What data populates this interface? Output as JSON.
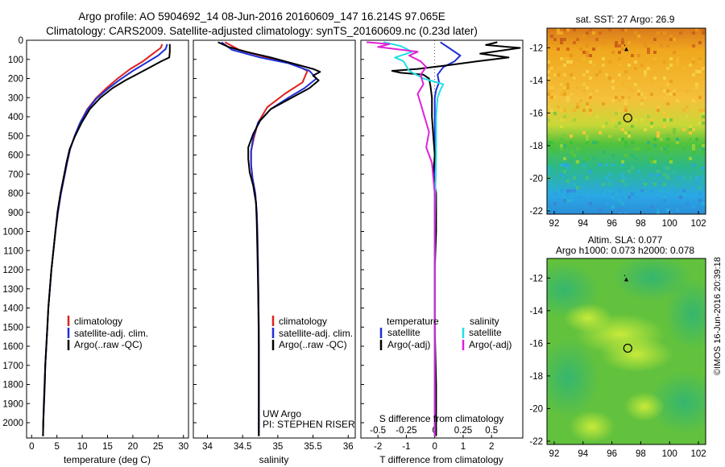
{
  "header": {
    "line1": "Argo profile: AO 5904692_14 08-Jun-2016 20160609_147 16.214S 97.065E",
    "line2": "Climatology: CARS2009. Satellite-adjusted climatology: synTS_20160609.nc (0.23d later)"
  },
  "colors": {
    "clim": "#e0201b",
    "sat": "#1f2fd8",
    "argo": "#000000",
    "sal_sat": "#1fe0e6",
    "sal_argo": "#e020d8"
  },
  "chart_data": [
    {
      "type": "line",
      "name": "temperature",
      "xlabel": "temperature (deg C)",
      "xlim": [
        -1,
        31
      ],
      "ylim": [
        0,
        2080
      ],
      "xticks": [
        0,
        5,
        10,
        15,
        20,
        25,
        30
      ],
      "yticks": [
        0,
        100,
        200,
        300,
        400,
        500,
        600,
        700,
        800,
        900,
        1000,
        1100,
        1200,
        1300,
        1400,
        1500,
        1600,
        1700,
        1800,
        1900,
        2000
      ],
      "legend": [
        "climatology",
        "satellite-adj. clim.",
        "Argo(..raw -QC)"
      ],
      "series": [
        {
          "name": "climatology",
          "points": [
            [
              25.8,
              20
            ],
            [
              25.5,
              40
            ],
            [
              24,
              70
            ],
            [
              22,
              110
            ],
            [
              19.5,
              150
            ],
            [
              17,
              200
            ],
            [
              14.8,
              250
            ],
            [
              12.8,
              300
            ],
            [
              11,
              360
            ],
            [
              9.6,
              430
            ],
            [
              8.5,
              500
            ],
            [
              7.6,
              570
            ],
            [
              7,
              640
            ],
            [
              6.4,
              720
            ],
            [
              5.8,
              800
            ],
            [
              5.2,
              900
            ],
            [
              4.7,
              1000
            ],
            [
              4.3,
              1100
            ],
            [
              3.9,
              1200
            ],
            [
              3.6,
              1300
            ],
            [
              3.3,
              1400
            ],
            [
              3.1,
              1500
            ],
            [
              2.9,
              1600
            ],
            [
              2.7,
              1700
            ],
            [
              2.6,
              1800
            ],
            [
              2.45,
              1900
            ],
            [
              2.3,
              2000
            ],
            [
              2.25,
              2070
            ]
          ]
        },
        {
          "name": "satellite-adj. clim.",
          "points": [
            [
              26.8,
              20
            ],
            [
              26.5,
              45
            ],
            [
              25,
              80
            ],
            [
              22.5,
              120
            ],
            [
              20,
              160
            ],
            [
              17.5,
              205
            ],
            [
              15,
              255
            ],
            [
              12.8,
              305
            ],
            [
              11,
              365
            ],
            [
              9.6,
              430
            ],
            [
              8.5,
              500
            ],
            [
              7.6,
              570
            ],
            [
              7,
              640
            ],
            [
              6.4,
              720
            ],
            [
              5.8,
              800
            ],
            [
              5.2,
              900
            ],
            [
              4.7,
              1000
            ],
            [
              4.3,
              1100
            ],
            [
              3.9,
              1200
            ],
            [
              3.6,
              1300
            ],
            [
              3.3,
              1400
            ],
            [
              3.1,
              1500
            ],
            [
              2.9,
              1600
            ],
            [
              2.7,
              1700
            ],
            [
              2.6,
              1800
            ],
            [
              2.45,
              1900
            ],
            [
              2.3,
              2000
            ],
            [
              2.25,
              2070
            ]
          ]
        },
        {
          "name": "Argo(..raw -QC)",
          "points": [
            [
              27.3,
              20
            ],
            [
              27.3,
              60
            ],
            [
              27.2,
              90
            ],
            [
              25.6,
              110
            ],
            [
              23.5,
              140
            ],
            [
              21,
              175
            ],
            [
              18.5,
              210
            ],
            [
              16,
              250
            ],
            [
              13.6,
              300
            ],
            [
              11.5,
              360
            ],
            [
              9.9,
              430
            ],
            [
              8.6,
              500
            ],
            [
              7.5,
              570
            ],
            [
              6.9,
              640
            ],
            [
              6.3,
              720
            ],
            [
              5.7,
              800
            ],
            [
              5.1,
              900
            ],
            [
              4.7,
              1000
            ],
            [
              4.3,
              1100
            ],
            [
              3.9,
              1200
            ],
            [
              3.6,
              1300
            ],
            [
              3.3,
              1400
            ],
            [
              3.1,
              1500
            ],
            [
              2.9,
              1600
            ],
            [
              2.7,
              1700
            ],
            [
              2.55,
              1800
            ],
            [
              2.4,
              1900
            ],
            [
              2.3,
              2000
            ],
            [
              2.25,
              2070
            ]
          ]
        }
      ]
    },
    {
      "type": "line",
      "name": "salinity",
      "xlabel": "salinity",
      "xlim": [
        33.8,
        36.1
      ],
      "ylim": [
        0,
        2080
      ],
      "xticks": [
        34,
        34.5,
        35,
        35.5,
        36
      ],
      "legend": [
        "climatology",
        "satellite-adj. clim.",
        "Argo(..raw -QC)"
      ],
      "annotations": [
        "UW Argo",
        "PI: STEPHEN RISER"
      ],
      "series": [
        {
          "name": "climatology",
          "points": [
            [
              34.25,
              10
            ],
            [
              34.45,
              50
            ],
            [
              34.85,
              90
            ],
            [
              35.2,
              120
            ],
            [
              35.42,
              160
            ],
            [
              35.35,
              220
            ],
            [
              35.1,
              280
            ],
            [
              34.85,
              350
            ],
            [
              34.72,
              430
            ],
            [
              34.66,
              510
            ],
            [
              34.62,
              580
            ],
            [
              34.62,
              650
            ],
            [
              34.64,
              720
            ],
            [
              34.68,
              800
            ],
            [
              34.7,
              900
            ],
            [
              34.71,
              1000
            ],
            [
              34.72,
              1200
            ],
            [
              34.73,
              1500
            ],
            [
              34.73,
              1800
            ],
            [
              34.73,
              2070
            ]
          ]
        },
        {
          "name": "satellite-adj. clim.",
          "points": [
            [
              34.2,
              10
            ],
            [
              34.35,
              50
            ],
            [
              34.75,
              90
            ],
            [
              35.15,
              120
            ],
            [
              35.45,
              160
            ],
            [
              35.55,
              200
            ],
            [
              35.38,
              250
            ],
            [
              35.15,
              300
            ],
            [
              34.9,
              360
            ],
            [
              34.72,
              430
            ],
            [
              34.65,
              510
            ],
            [
              34.62,
              580
            ],
            [
              34.62,
              650
            ],
            [
              34.64,
              720
            ],
            [
              34.68,
              800
            ],
            [
              34.7,
              900
            ],
            [
              34.71,
              1000
            ],
            [
              34.72,
              1200
            ],
            [
              34.73,
              1500
            ],
            [
              34.73,
              1800
            ],
            [
              34.73,
              2070
            ]
          ]
        },
        {
          "name": "Argo(..raw -QC)",
          "points": [
            [
              34.15,
              10
            ],
            [
              34.3,
              35
            ],
            [
              34.55,
              60
            ],
            [
              34.9,
              90
            ],
            [
              35.2,
              120
            ],
            [
              35.5,
              150
            ],
            [
              35.6,
              165
            ],
            [
              35.5,
              185
            ],
            [
              35.58,
              210
            ],
            [
              35.45,
              250
            ],
            [
              35.3,
              280
            ],
            [
              35.1,
              320
            ],
            [
              34.9,
              360
            ],
            [
              34.75,
              420
            ],
            [
              34.65,
              490
            ],
            [
              34.58,
              560
            ],
            [
              34.58,
              620
            ],
            [
              34.6,
              690
            ],
            [
              34.65,
              760
            ],
            [
              34.69,
              850
            ],
            [
              34.7,
              950
            ],
            [
              34.71,
              1100
            ],
            [
              34.72,
              1300
            ],
            [
              34.73,
              1600
            ],
            [
              34.73,
              2070
            ]
          ]
        }
      ]
    },
    {
      "type": "line",
      "name": "difference",
      "xlabel": "T difference from climatology",
      "xlabel_top": "S difference from climatology",
      "xlim": [
        -2.6,
        3.1
      ],
      "ylim": [
        0,
        2080
      ],
      "xticks": [
        -2,
        -1,
        0,
        1,
        2
      ],
      "xticks_top": [
        "-0.5",
        "-0.25",
        "0",
        "0.25",
        "0.5"
      ],
      "legend_left_title": "temperature",
      "legend_right_title": "salinity",
      "legend_left": [
        "satellite",
        "Argo(-adj)"
      ],
      "legend_right": [
        "satellite",
        "Argo(-adj)"
      ],
      "series": [
        {
          "name": "T satellite",
          "color": "sat",
          "points": [
            [
              0.2,
              10
            ],
            [
              0.5,
              40
            ],
            [
              0.9,
              80
            ],
            [
              0.7,
              110
            ],
            [
              0.3,
              140
            ],
            [
              0.1,
              180
            ],
            [
              0.15,
              220
            ],
            [
              0.05,
              260
            ],
            [
              0,
              300
            ],
            [
              0,
              700
            ],
            [
              0,
              1000
            ],
            [
              0,
              2070
            ]
          ]
        },
        {
          "name": "T Argo(-adj)",
          "color": "argo",
          "points": [
            [
              2.2,
              10
            ],
            [
              1.8,
              25
            ],
            [
              3,
              40
            ],
            [
              1.6,
              70
            ],
            [
              2.6,
              90
            ],
            [
              1.5,
              110
            ],
            [
              0.5,
              130
            ],
            [
              -0.6,
              150
            ],
            [
              -1.5,
              160
            ],
            [
              -1.2,
              170
            ],
            [
              -0.4,
              180
            ],
            [
              -0.2,
              200
            ],
            [
              -0.15,
              240
            ],
            [
              -0.1,
              300
            ],
            [
              -0.1,
              400
            ],
            [
              -0.05,
              500
            ],
            [
              0,
              600
            ],
            [
              -0.05,
              700
            ],
            [
              0.05,
              800
            ],
            [
              0.05,
              1000
            ],
            [
              0,
              1200
            ],
            [
              0,
              1500
            ],
            [
              0.05,
              1800
            ],
            [
              0.05,
              2070
            ]
          ]
        },
        {
          "name": "S satellite",
          "color": "sal_sat",
          "points": [
            [
              -1.8,
              10
            ],
            [
              -1.2,
              30
            ],
            [
              -0.8,
              60
            ],
            [
              -1.4,
              90
            ],
            [
              -1.1,
              110
            ],
            [
              -0.9,
              160
            ],
            [
              -0.4,
              200
            ],
            [
              0.3,
              230
            ],
            [
              0.2,
              260
            ],
            [
              0.1,
              300
            ],
            [
              0.05,
              400
            ],
            [
              0.05,
              600
            ],
            [
              0.02,
              800
            ],
            [
              0,
              1000
            ],
            [
              0,
              2070
            ]
          ]
        },
        {
          "name": "S Argo(-adj)",
          "color": "sal_argo",
          "points": [
            [
              -2.4,
              10
            ],
            [
              -1.6,
              20
            ],
            [
              -2.0,
              35
            ],
            [
              -0.6,
              60
            ],
            [
              -0.9,
              80
            ],
            [
              -0.5,
              110
            ],
            [
              -0.3,
              140
            ],
            [
              -0.5,
              180
            ],
            [
              -0.4,
              230
            ],
            [
              -0.6,
              280
            ],
            [
              -0.5,
              330
            ],
            [
              -0.4,
              380
            ],
            [
              -0.3,
              430
            ],
            [
              -0.2,
              480
            ],
            [
              -0.3,
              560
            ],
            [
              -0.1,
              640
            ],
            [
              -0.05,
              720
            ],
            [
              0,
              800
            ],
            [
              0,
              1000
            ],
            [
              0,
              2070
            ]
          ]
        }
      ]
    },
    {
      "type": "heatmap",
      "name": "sst-map",
      "title": "sat. SST: 27 Argo: 26.9",
      "xticks": [
        92,
        94,
        96,
        98,
        100,
        102
      ],
      "yticks": [
        -12,
        -14,
        -16,
        -18,
        -20,
        -22
      ],
      "xlim": [
        91.5,
        102.5
      ],
      "ylim": [
        -22.2,
        -10.8
      ],
      "marker": [
        97.1,
        -16.3
      ],
      "triangle": [
        97.0,
        -12.1
      ]
    },
    {
      "type": "heatmap",
      "name": "sla-map",
      "title": "Altim. SLA: 0.077",
      "subtitle": "Argo h1000: 0.073 h2000: 0.078",
      "xticks": [
        92,
        94,
        96,
        98,
        100,
        102
      ],
      "yticks": [
        -12,
        -14,
        -16,
        -18,
        -20,
        -22
      ],
      "xlim": [
        91.5,
        102.5
      ],
      "ylim": [
        -22.2,
        -10.8
      ],
      "marker": [
        97.1,
        -16.3
      ],
      "triangle": [
        97.0,
        -12.1
      ]
    }
  ],
  "footer": {
    "stamp": "©IMOS 16-Jun-2016 20:39:18"
  }
}
